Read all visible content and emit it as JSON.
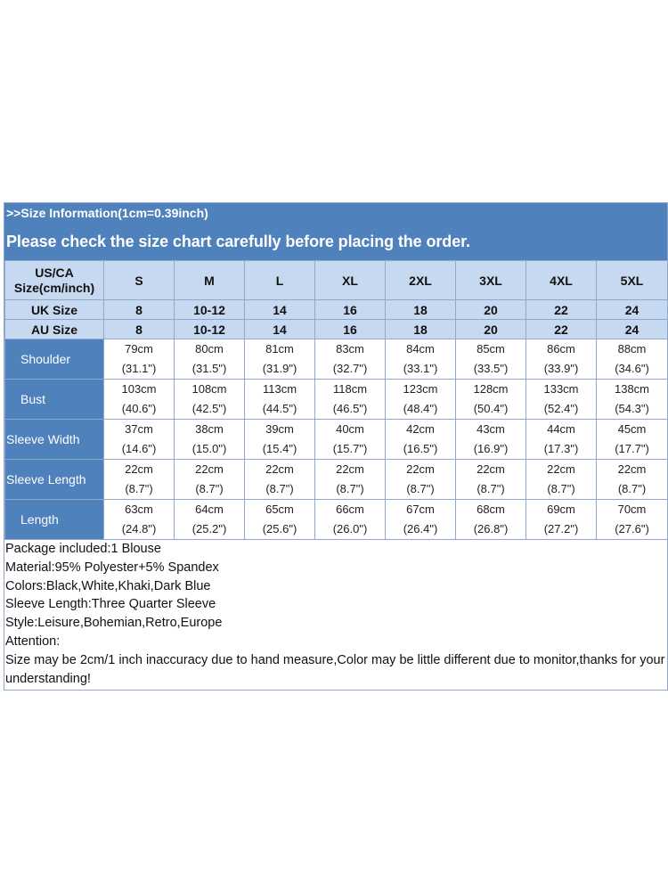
{
  "header": {
    "size_info": ">>Size Information(1cm=0.39inch)",
    "notice": "Please check the size chart carefully before placing the order."
  },
  "size_labels": {
    "us_ca_line1": "US/CA",
    "us_ca_line2": "Size(cm/inch)",
    "uk": "UK Size",
    "au": "AU Size"
  },
  "sizes": [
    "S",
    "M",
    "L",
    "XL",
    "2XL",
    "3XL",
    "4XL",
    "5XL"
  ],
  "uk_sizes": [
    "8",
    "10-12",
    "14",
    "16",
    "18",
    "20",
    "22",
    "24"
  ],
  "au_sizes": [
    "8",
    "10-12",
    "14",
    "16",
    "18",
    "20",
    "22",
    "24"
  ],
  "measurements": [
    {
      "label": "Shoulder",
      "cm": [
        "79cm",
        "80cm",
        "81cm",
        "83cm",
        "84cm",
        "85cm",
        "86cm",
        "88cm"
      ],
      "inch": [
        "(31.1\")",
        "(31.5\")",
        "(31.9\")",
        "(32.7\")",
        "(33.1\")",
        "(33.5\")",
        "(33.9\")",
        "(34.6\")"
      ]
    },
    {
      "label": "Bust",
      "cm": [
        "103cm",
        "108cm",
        "113cm",
        "118cm",
        "123cm",
        "128cm",
        "133cm",
        "138cm"
      ],
      "inch": [
        "(40.6\")",
        "(42.5\")",
        "(44.5\")",
        "(46.5\")",
        "(48.4\")",
        "(50.4\")",
        "(52.4\")",
        "(54.3\")"
      ]
    },
    {
      "label": "Sleeve Width",
      "cm": [
        "37cm",
        "38cm",
        "39cm",
        "40cm",
        "42cm",
        "43cm",
        "44cm",
        "45cm"
      ],
      "inch": [
        "(14.6\")",
        "(15.0\")",
        "(15.4\")",
        "(15.7\")",
        "(16.5\")",
        "(16.9\")",
        "(17.3\")",
        "(17.7\")"
      ]
    },
    {
      "label": "Sleeve Length",
      "cm": [
        "22cm",
        "22cm",
        "22cm",
        "22cm",
        "22cm",
        "22cm",
        "22cm",
        "22cm"
      ],
      "inch": [
        "(8.7\")",
        "(8.7\")",
        "(8.7\")",
        "(8.7\")",
        "(8.7\")",
        "(8.7\")",
        "(8.7\")",
        "(8.7\")"
      ]
    },
    {
      "label": "Length",
      "cm": [
        "63cm",
        "64cm",
        "65cm",
        "66cm",
        "67cm",
        "68cm",
        "69cm",
        "70cm"
      ],
      "inch": [
        "(24.8\")",
        "(25.2\")",
        "(25.6\")",
        "(26.0\")",
        "(26.4\")",
        "(26.8\")",
        "(27.2\")",
        "(27.6\")"
      ]
    }
  ],
  "info": {
    "package": "Package included:1 Blouse",
    "material": "Material:95% Polyester+5% Spandex",
    "colors": "Colors:Black,White,Khaki,Dark Blue",
    "sleeve_length": "Sleeve Length:Three Quarter Sleeve",
    "style": "Style:Leisure,Bohemian,Retro,Europe",
    "attention": "Attention:",
    "disclaimer": "Size may be 2cm/1 inch inaccuracy due to hand measure,Color may be little different due to monitor,thanks for your understanding!"
  }
}
